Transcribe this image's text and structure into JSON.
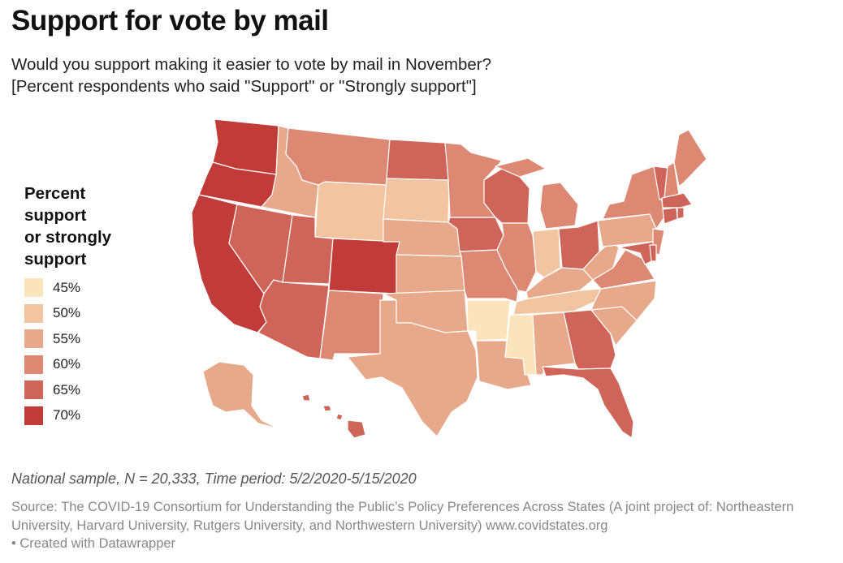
{
  "title": "Support for vote by mail",
  "subtitle_line1": "Would you support making it easier to vote by mail in November?",
  "subtitle_line2": "[Percent respondents who said \"Support\" or \"Strongly support\"]",
  "legend": {
    "title_lines": [
      "Percent",
      "support",
      "or strongly",
      "support"
    ],
    "items": [
      {
        "label": "45%",
        "color": "#fbe3bc"
      },
      {
        "label": "50%",
        "color": "#f3c4a0"
      },
      {
        "label": "55%",
        "color": "#e8a98b"
      },
      {
        "label": "60%",
        "color": "#dc8872"
      },
      {
        "label": "65%",
        "color": "#cf6459"
      },
      {
        "label": "70%",
        "color": "#c13b38"
      }
    ]
  },
  "chart_data": {
    "type": "choropleth",
    "value_label": "Percent support or strongly support",
    "bins": [
      45,
      50,
      55,
      60,
      65,
      70
    ],
    "states": {
      "WA": 70,
      "OR": 70,
      "CA": 70,
      "CO": 70,
      "ND": 65,
      "WI": 65,
      "IA": 65,
      "OH": 65,
      "GA": 65,
      "FL": 65,
      "NV": 65,
      "UT": 65,
      "AZ": 65,
      "VT": 65,
      "MA": 65,
      "CT": 65,
      "RI": 65,
      "MD": 65,
      "DE": 65,
      "HI": 65,
      "MT": 60,
      "MN": 60,
      "MI": 60,
      "IL": 60,
      "MO": 60,
      "NM": 60,
      "NY": 60,
      "NH": 60,
      "NJ": 60,
      "ME": 60,
      "VA": 60,
      "ID": 55,
      "NE": 55,
      "KS": 55,
      "OK": 55,
      "TX": 55,
      "LA": 55,
      "AL": 55,
      "KY": 55,
      "WV": 55,
      "PA": 55,
      "NC": 55,
      "SC": 55,
      "AK": 55,
      "WY": 50,
      "SD": 50,
      "IN": 50,
      "TN": 50,
      "AR": 45,
      "MS": 45
    }
  },
  "note": "National sample, N = 20,333, Time period: 5/2/2020-5/15/2020",
  "source": "Source: The COVID-19 Consortium for Understanding the Public’s Policy Preferences Across States (A joint project of: Northeastern University, Harvard University, Rutgers University, and Northwestern University) www.covidstates.org",
  "credit": "• Created with Datawrapper"
}
